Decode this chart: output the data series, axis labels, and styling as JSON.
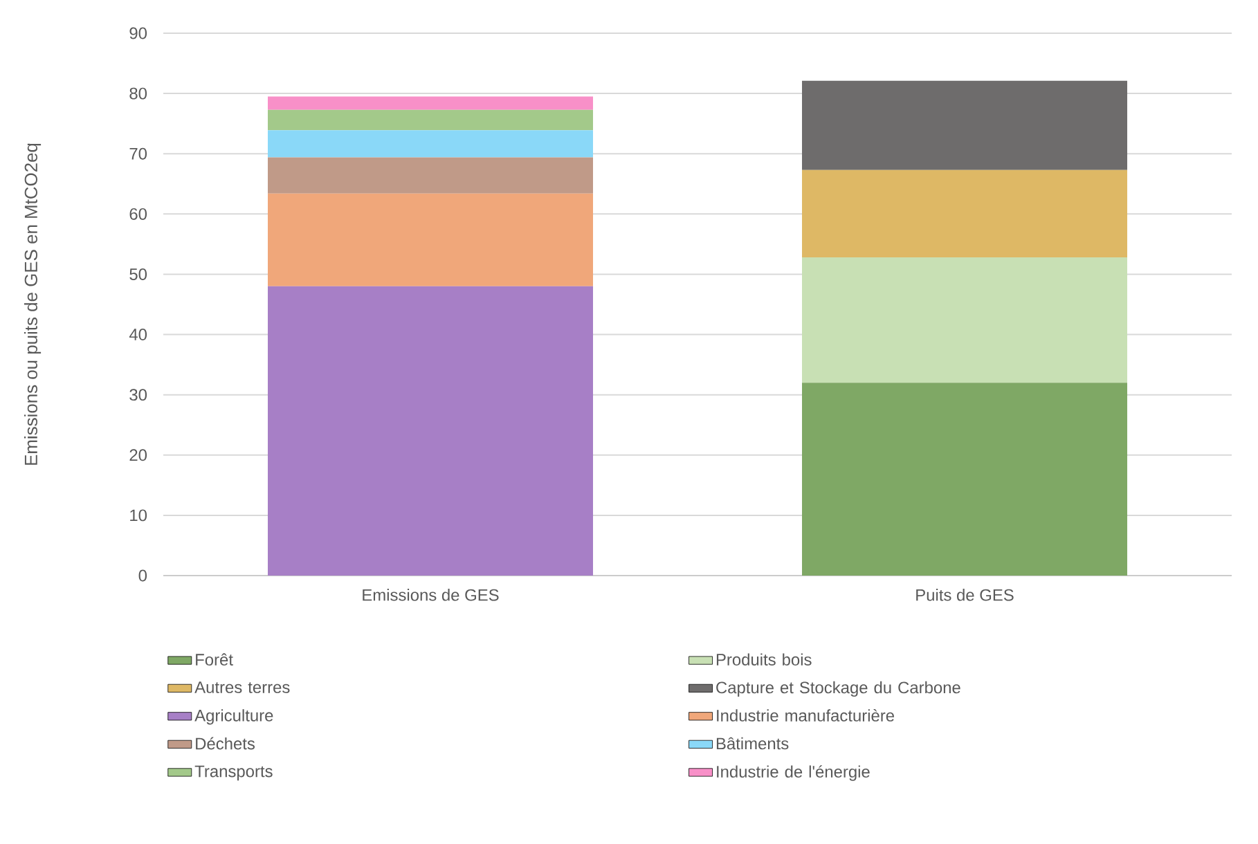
{
  "chart_data": {
    "type": "bar",
    "stacked": true,
    "ylabel": "Emissions ou puits de GES en MtCO2eq",
    "categories": [
      "Emissions de GES",
      "Puits de GES"
    ],
    "series": [
      {
        "name": "Forêt",
        "color": "#7fa865",
        "values": [
          null,
          32
        ]
      },
      {
        "name": "Produits bois",
        "color": "#c8e0b4",
        "values": [
          null,
          20.8
        ]
      },
      {
        "name": "Autres terres",
        "color": "#deb865",
        "values": [
          null,
          14.5
        ]
      },
      {
        "name": "Capture et Stockage du Carbone",
        "color": "#6e6c6c",
        "values": [
          null,
          14.8
        ]
      },
      {
        "name": "Agriculture",
        "color": "#a77fc6",
        "values": [
          48,
          null
        ]
      },
      {
        "name": "Industrie manufacturière",
        "color": "#f0a77a",
        "values": [
          15.4,
          null
        ]
      },
      {
        "name": "Déchets",
        "color": "#c09a88",
        "values": [
          6,
          null
        ]
      },
      {
        "name": "Bâtiments",
        "color": "#8ad8f8",
        "values": [
          4.5,
          null
        ]
      },
      {
        "name": "Transports",
        "color": "#a3c98a",
        "values": [
          3.4,
          null
        ]
      },
      {
        "name": "Industrie de l'énergie",
        "color": "#f890c8",
        "values": [
          2.2,
          null
        ]
      }
    ],
    "ylim": [
      0,
      90
    ],
    "yticks": [
      0,
      10,
      20,
      30,
      40,
      50,
      60,
      70,
      80,
      90
    ],
    "grid": "y",
    "legend": "bottom"
  }
}
